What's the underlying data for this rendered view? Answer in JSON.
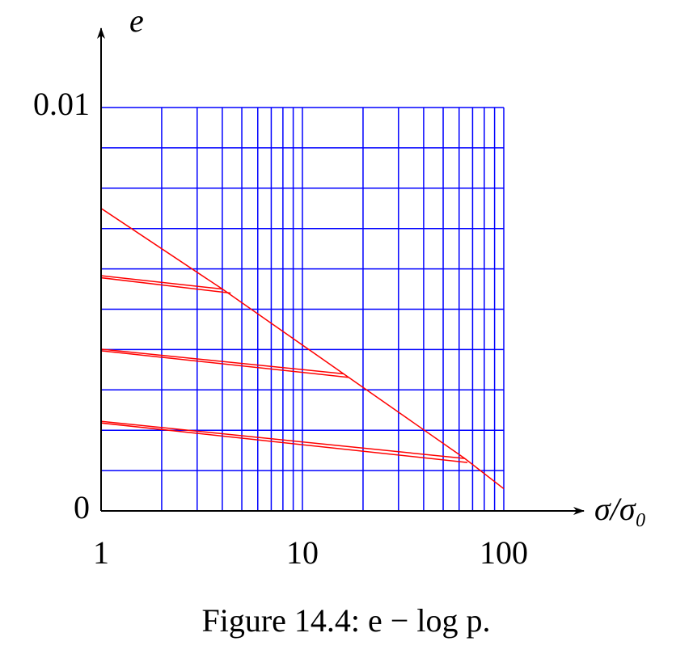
{
  "chart_data": {
    "type": "line",
    "caption": "Figure 14.4: e − log p.",
    "ylabel": "e",
    "xlabel": "σ/σ₀",
    "xlog": true,
    "xlim": [
      1,
      100
    ],
    "ylim": [
      0,
      0.01
    ],
    "xticks": [
      1,
      10,
      100
    ],
    "yticks": [
      0,
      0.01
    ],
    "xgrid": [
      1,
      2,
      3,
      4,
      5,
      6,
      7,
      8,
      9,
      10,
      20,
      30,
      40,
      50,
      60,
      70,
      80,
      90,
      100
    ],
    "ygrid": [
      0,
      0.001,
      0.002,
      0.003,
      0.004,
      0.005,
      0.006,
      0.007,
      0.008,
      0.009,
      0.01
    ],
    "grid_color": "#0000ff",
    "series": [
      {
        "color": "#ff0000",
        "x": [
          1,
          4,
          16,
          64,
          100
        ],
        "values": [
          0.0075,
          0.0055,
          0.0034,
          0.0013,
          0.00055
        ]
      },
      {
        "color": "#ff0000",
        "x": [
          4,
          1,
          1,
          4.4
        ],
        "values": [
          0.0055,
          0.00583,
          0.00578,
          0.0054
        ]
      },
      {
        "color": "#ff0000",
        "x": [
          16,
          1,
          1,
          17
        ],
        "values": [
          0.0034,
          0.00401,
          0.00397,
          0.00331
        ]
      },
      {
        "color": "#ff0000",
        "x": [
          64,
          1,
          1,
          66
        ],
        "values": [
          0.0013,
          0.00222,
          0.00218,
          0.0012
        ]
      }
    ]
  }
}
